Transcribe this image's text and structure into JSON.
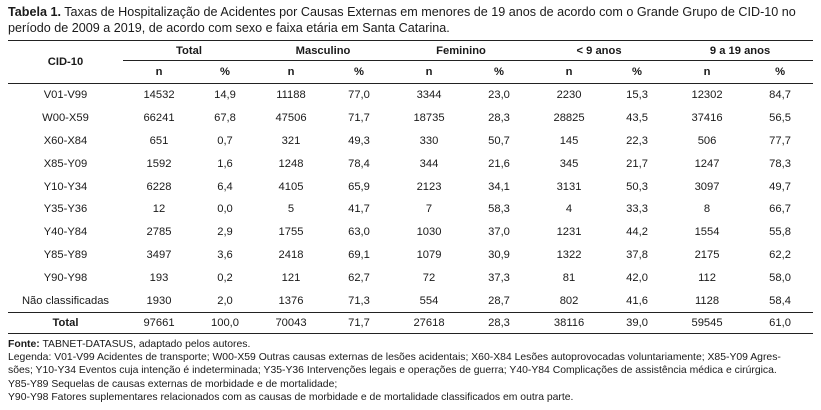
{
  "caption": {
    "label": "Tabela 1.",
    "line1": "Taxas de Hospitalização de Acidentes por Causas Externas em menores de 19 anos de acordo com o Grande Grupo de CID-10 no",
    "line2": "período de 2009 a 2019, de acordo com sexo e faixa etária em Santa Catarina."
  },
  "table": {
    "row_header": "CID-10",
    "groups": [
      "Total",
      "Masculino",
      "Feminino",
      "< 9 anos",
      "9 a 19 anos"
    ],
    "sub": {
      "n": "n",
      "pct": "%"
    },
    "rows": [
      {
        "cid": "V01-V99",
        "vals": [
          "14532",
          "14,9",
          "11188",
          "77,0",
          "3344",
          "23,0",
          "2230",
          "15,3",
          "12302",
          "84,7"
        ]
      },
      {
        "cid": "W00-X59",
        "vals": [
          "66241",
          "67,8",
          "47506",
          "71,7",
          "18735",
          "28,3",
          "28825",
          "43,5",
          "37416",
          "56,5"
        ]
      },
      {
        "cid": "X60-X84",
        "vals": [
          "651",
          "0,7",
          "321",
          "49,3",
          "330",
          "50,7",
          "145",
          "22,3",
          "506",
          "77,7"
        ]
      },
      {
        "cid": "X85-Y09",
        "vals": [
          "1592",
          "1,6",
          "1248",
          "78,4",
          "344",
          "21,6",
          "345",
          "21,7",
          "1247",
          "78,3"
        ]
      },
      {
        "cid": "Y10-Y34",
        "vals": [
          "6228",
          "6,4",
          "4105",
          "65,9",
          "2123",
          "34,1",
          "3131",
          "50,3",
          "3097",
          "49,7"
        ]
      },
      {
        "cid": "Y35-Y36",
        "vals": [
          "12",
          "0,0",
          "5",
          "41,7",
          "7",
          "58,3",
          "4",
          "33,3",
          "8",
          "66,7"
        ]
      },
      {
        "cid": "Y40-Y84",
        "vals": [
          "2785",
          "2,9",
          "1755",
          "63,0",
          "1030",
          "37,0",
          "1231",
          "44,2",
          "1554",
          "55,8"
        ]
      },
      {
        "cid": "Y85-Y89",
        "vals": [
          "3497",
          "3,6",
          "2418",
          "69,1",
          "1079",
          "30,9",
          "1322",
          "37,8",
          "2175",
          "62,2"
        ]
      },
      {
        "cid": "Y90-Y98",
        "vals": [
          "193",
          "0,2",
          "121",
          "62,7",
          "72",
          "37,3",
          "81",
          "42,0",
          "112",
          "58,0"
        ]
      },
      {
        "cid": "Não classificadas",
        "vals": [
          "1930",
          "2,0",
          "1376",
          "71,3",
          "554",
          "28,7",
          "802",
          "41,6",
          "1128",
          "58,4"
        ]
      }
    ],
    "total": {
      "cid": "Total",
      "vals": [
        "97661",
        "100,0",
        "70043",
        "71,7",
        "27618",
        "28,3",
        "38116",
        "39,0",
        "59545",
        "61,0"
      ]
    }
  },
  "notes": {
    "source_label": "Fonte:",
    "source_text": " TABNET-DATASUS, adaptado pelos autores.",
    "legend_lines": [
      "Legenda: V01-V99 Acidentes de transporte; W00-X59 Outras causas externas de lesões acidentais; X60-X84 Lesões autoprovocadas voluntariamente; X85-Y09 Agres-",
      "sões; Y10-Y34 Eventos cuja intenção é indeterminada; Y35-Y36 Intervenções legais e operações de guerra; Y40-Y84 Complicações de assistência médica e cirúrgica.",
      "Y85-Y89 Sequelas de causas externas de morbidade e de mortalidade;",
      "Y90-Y98 Fatores suplementares relacionados com as causas de morbidade e de mortalidade classificados em outra parte."
    ]
  }
}
